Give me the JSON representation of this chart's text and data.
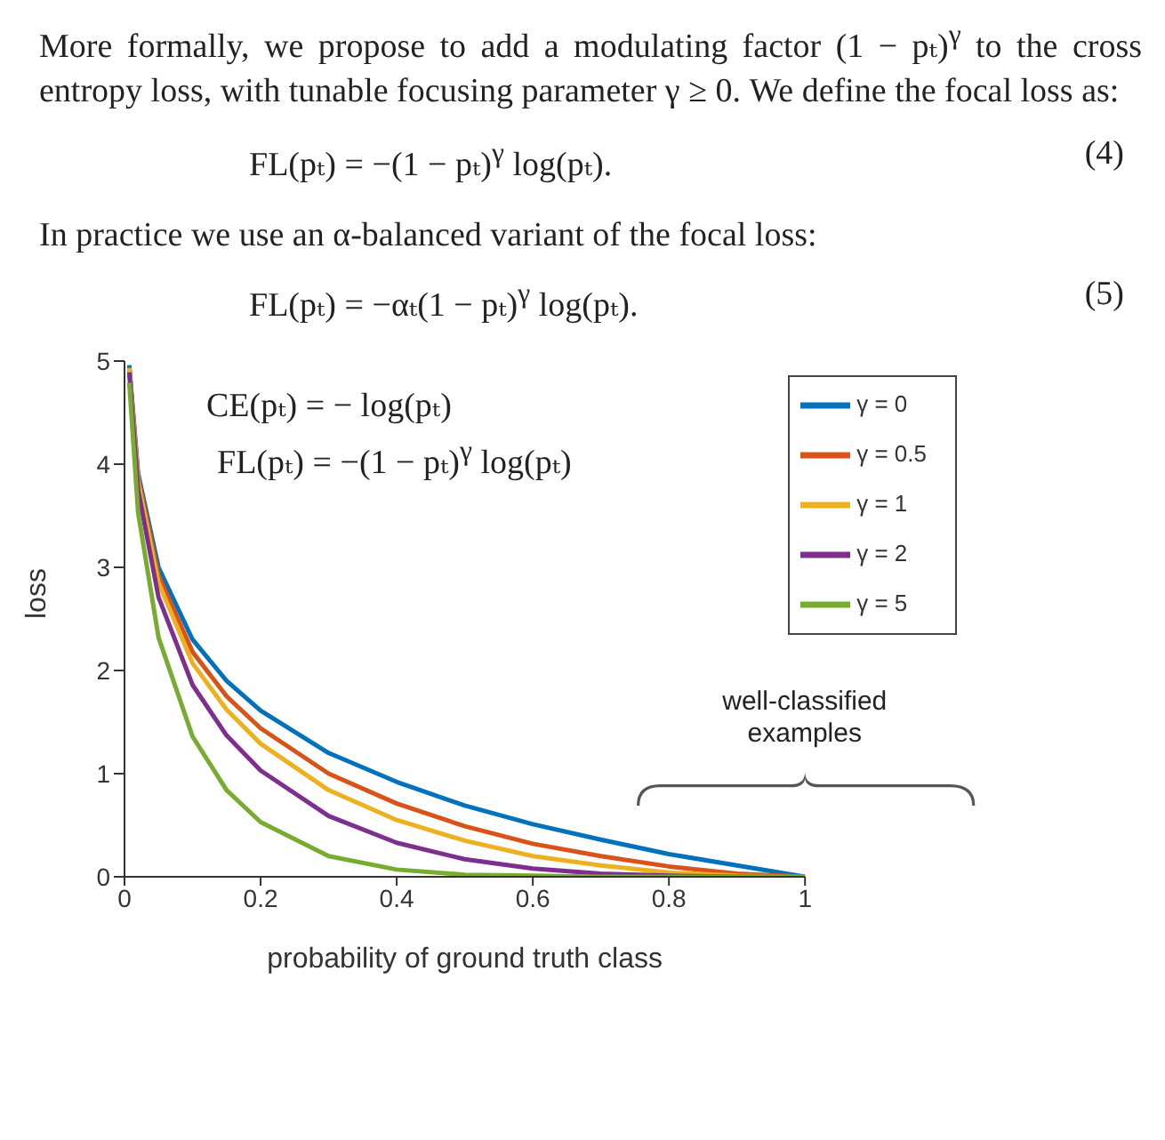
{
  "chart_data": {
    "type": "line",
    "annotations": [
      "More formally, we propose to add a modulating factor (1 − pₜ)$^{γ}$ to the cross entropy loss, with tunable focusing parameter γ ≥ 0. We define the focal loss as:",
      "FL(pₜ) = −(1 − pₜ)$^{γ}$ log(pₜ).",
      "(4)",
      "In practice we use an α-balanced variant of the focal loss:",
      "FL(pₜ) = −αₜ(1 − pₜ)$^{γ}$ log(pₜ).",
      "(5)",
      "CE(pₜ) = − log(pₜ)",
      "FL(pₜ) = −(1 − pₜ)$^{γ}$ log(pₜ)",
      "well-classified examples"
    ],
    "xlabel": "probability of ground truth class",
    "ylabel": "loss",
    "x": [
      0.007,
      0.02,
      0.05,
      0.1,
      0.15,
      0.2,
      0.3,
      0.4,
      0.5,
      0.6,
      0.7,
      0.8,
      0.9,
      1.0
    ],
    "series": [
      {
        "name": "γ = 0",
        "color": "#0072bd",
        "values": [
          4.96,
          3.91,
          3.0,
          2.3,
          1.9,
          1.61,
          1.2,
          0.92,
          0.69,
          0.51,
          0.36,
          0.22,
          0.11,
          0
        ]
      },
      {
        "name": "γ = 0.5",
        "color": "#d95319",
        "values": [
          4.94,
          3.87,
          2.92,
          2.18,
          1.75,
          1.44,
          1.0,
          0.71,
          0.49,
          0.32,
          0.2,
          0.1,
          0.03,
          0
        ]
      },
      {
        "name": "γ = 1",
        "color": "#edb120",
        "values": [
          4.93,
          3.83,
          2.85,
          2.07,
          1.62,
          1.29,
          0.84,
          0.55,
          0.35,
          0.2,
          0.11,
          0.04,
          0.01,
          0
        ]
      },
      {
        "name": "γ = 2",
        "color": "#7e2f8e",
        "values": [
          4.89,
          3.75,
          2.71,
          1.86,
          1.37,
          1.03,
          0.59,
          0.33,
          0.17,
          0.08,
          0.03,
          0.01,
          0,
          0
        ]
      },
      {
        "name": "γ = 5",
        "color": "#77ac30",
        "values": [
          4.79,
          3.53,
          2.32,
          1.36,
          0.84,
          0.53,
          0.2,
          0.07,
          0.02,
          0.01,
          0,
          0,
          0,
          0
        ]
      }
    ],
    "xlim": [
      0,
      1
    ],
    "xticks": [
      0,
      0.2,
      0.4,
      0.6,
      0.8,
      1
    ],
    "ylim": [
      0,
      5
    ],
    "yticks": [
      0,
      1,
      2,
      3,
      4,
      5
    ],
    "grid": false,
    "legend": "top right",
    "marker": "none",
    "line_style": "solid"
  }
}
